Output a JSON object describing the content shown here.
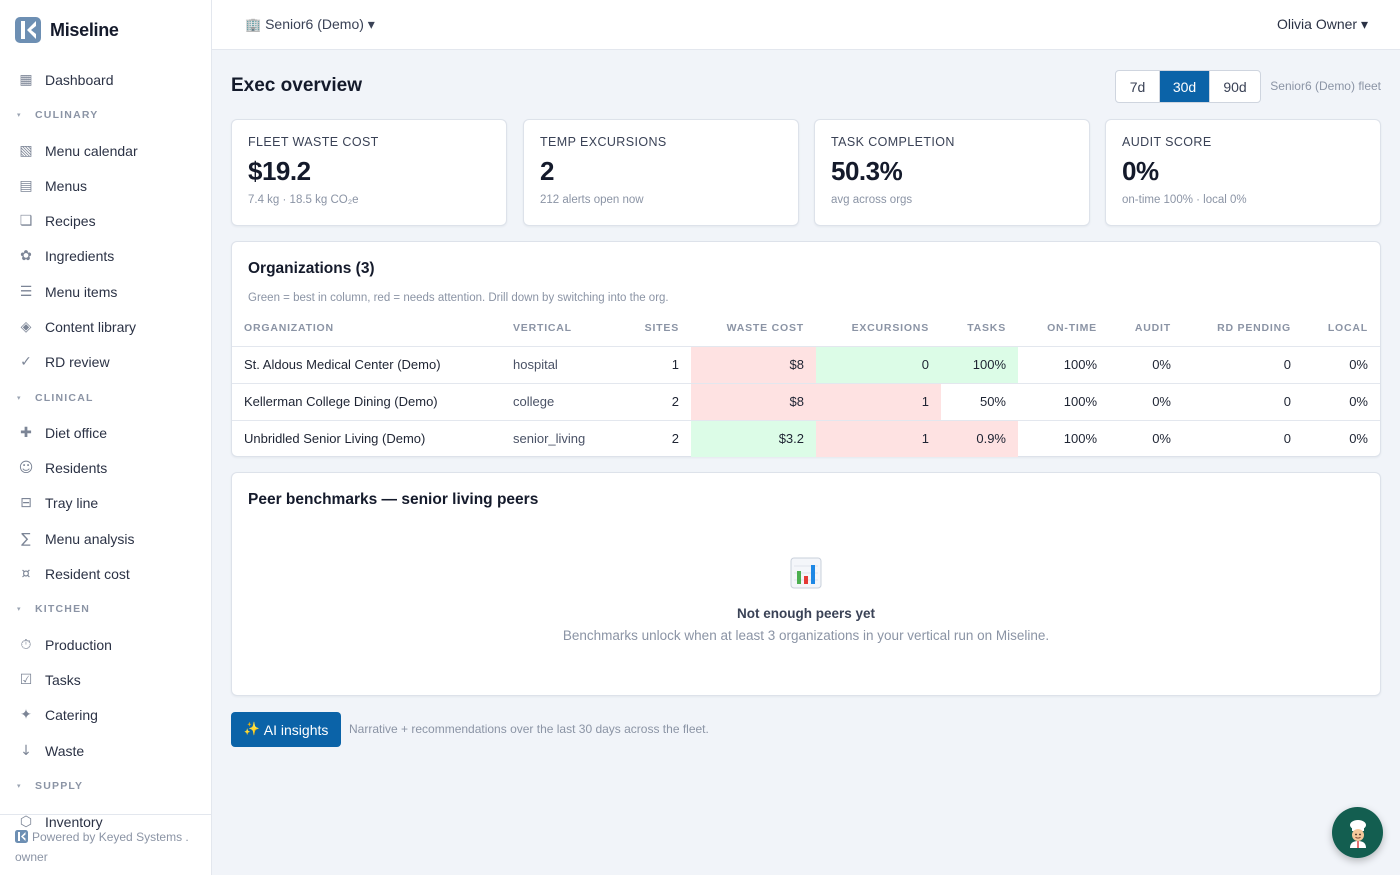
{
  "app": {
    "name": "Miseline"
  },
  "sidebar": {
    "nav": [
      {
        "type": "item",
        "icon": "dashboard-grid-icon",
        "glyph": "▦",
        "label": "Dashboard"
      },
      {
        "type": "section",
        "label": "CULINARY"
      },
      {
        "type": "item",
        "icon": "calendar-icon",
        "glyph": "▧",
        "label": "Menu calendar"
      },
      {
        "type": "item",
        "icon": "menu-list-icon",
        "glyph": "▤",
        "label": "Menus"
      },
      {
        "type": "item",
        "icon": "recipe-book-icon",
        "glyph": "❏",
        "label": "Recipes"
      },
      {
        "type": "item",
        "icon": "ingredient-flower-icon",
        "glyph": "✿",
        "label": "Ingredients"
      },
      {
        "type": "item",
        "icon": "list-icon",
        "glyph": "☰",
        "label": "Menu items"
      },
      {
        "type": "item",
        "icon": "diamond-icon",
        "glyph": "◈",
        "label": "Content library"
      },
      {
        "type": "item",
        "icon": "checkmark-icon",
        "glyph": "✓",
        "label": "RD review"
      },
      {
        "type": "section",
        "label": "CLINICAL"
      },
      {
        "type": "item",
        "icon": "plus-cross-icon",
        "glyph": "✚",
        "label": "Diet office"
      },
      {
        "type": "item",
        "icon": "smiley-icon",
        "glyph": "☺",
        "label": "Residents"
      },
      {
        "type": "item",
        "icon": "tray-icon",
        "glyph": "⊟",
        "label": "Tray line"
      },
      {
        "type": "item",
        "icon": "sigma-icon",
        "glyph": "∑",
        "label": "Menu analysis"
      },
      {
        "type": "item",
        "icon": "currency-icon",
        "glyph": "¤",
        "label": "Resident cost"
      },
      {
        "type": "section",
        "label": "KITCHEN"
      },
      {
        "type": "item",
        "icon": "stopwatch-icon",
        "glyph": "⏱",
        "label": "Production"
      },
      {
        "type": "item",
        "icon": "checkbox-icon",
        "glyph": "☑",
        "label": "Tasks"
      },
      {
        "type": "item",
        "icon": "sparkle-star-icon",
        "glyph": "✦",
        "label": "Catering"
      },
      {
        "type": "item",
        "icon": "down-arrow-icon",
        "glyph": "↓",
        "label": "Waste"
      },
      {
        "type": "section",
        "label": "SUPPLY"
      },
      {
        "type": "item",
        "icon": "hexagon-icon",
        "glyph": "⬡",
        "label": "Inventory"
      }
    ],
    "footer": {
      "powered_by": "Powered by Keyed Systems .",
      "role": "owner"
    }
  },
  "topbar": {
    "org_icon": "building-icon",
    "org_name": "Senior6 (Demo) ▾",
    "user_name": "Olivia Owner ▾"
  },
  "header": {
    "title": "Exec overview",
    "ranges": [
      "7d",
      "30d",
      "90d"
    ],
    "active_range": "30d",
    "fleet_label": "Senior6 (Demo) fleet"
  },
  "kpis": [
    {
      "label": "FLEET WASTE COST",
      "value": "$19.2",
      "sub": "7.4 kg · 18.5 kg CO₂e"
    },
    {
      "label": "TEMP EXCURSIONS",
      "value": "2",
      "sub": "212 alerts open now"
    },
    {
      "label": "TASK COMPLETION",
      "value": "50.3%",
      "sub": "avg across orgs"
    },
    {
      "label": "AUDIT SCORE",
      "value": "0%",
      "sub": "on-time 100% · local 0%"
    }
  ],
  "organizations": {
    "title": "Organizations (3)",
    "note": "Green = best in column, red = needs attention. Drill down by switching into the org.",
    "columns": [
      "ORGANIZATION",
      "VERTICAL",
      "SITES",
      "WASTE COST",
      "EXCURSIONS",
      "TASKS",
      "ON-TIME",
      "AUDIT",
      "RD PENDING",
      "LOCAL"
    ],
    "rows": [
      {
        "cells": [
          "St. Aldous Medical Center (Demo)",
          "hospital",
          "1",
          "$8",
          "0",
          "100%",
          "100%",
          "0%",
          "0",
          "0%"
        ],
        "status": [
          "",
          "",
          "",
          "bad",
          "good",
          "good",
          "",
          "",
          "",
          ""
        ]
      },
      {
        "cells": [
          "Kellerman College Dining (Demo)",
          "college",
          "2",
          "$8",
          "1",
          "50%",
          "100%",
          "0%",
          "0",
          "0%"
        ],
        "status": [
          "",
          "",
          "",
          "bad",
          "bad",
          "",
          "",
          "",
          "",
          ""
        ]
      },
      {
        "cells": [
          "Unbridled Senior Living (Demo)",
          "senior_living",
          "2",
          "$3.2",
          "1",
          "0.9%",
          "100%",
          "0%",
          "0",
          "0%"
        ],
        "status": [
          "",
          "",
          "",
          "good",
          "bad",
          "bad",
          "",
          "",
          "",
          ""
        ]
      }
    ]
  },
  "peers": {
    "title": "Peer benchmarks — senior living peers",
    "empty_icon": "bar-chart-icon",
    "empty_title": "Not enough peers yet",
    "empty_sub": "Benchmarks unlock when at least 3 organizations in your vertical run on Miseline."
  },
  "ai": {
    "button_label": "AI insights",
    "button_icon": "sparkles-icon",
    "note": "Narrative + recommendations over the last 30 days across the fleet."
  },
  "fab": {
    "icon": "chef-avatar-icon"
  },
  "colors": {
    "accent": "#0b63a8",
    "good": "#dcfce7",
    "bad": "#fee2e2",
    "fab": "#135e50"
  }
}
